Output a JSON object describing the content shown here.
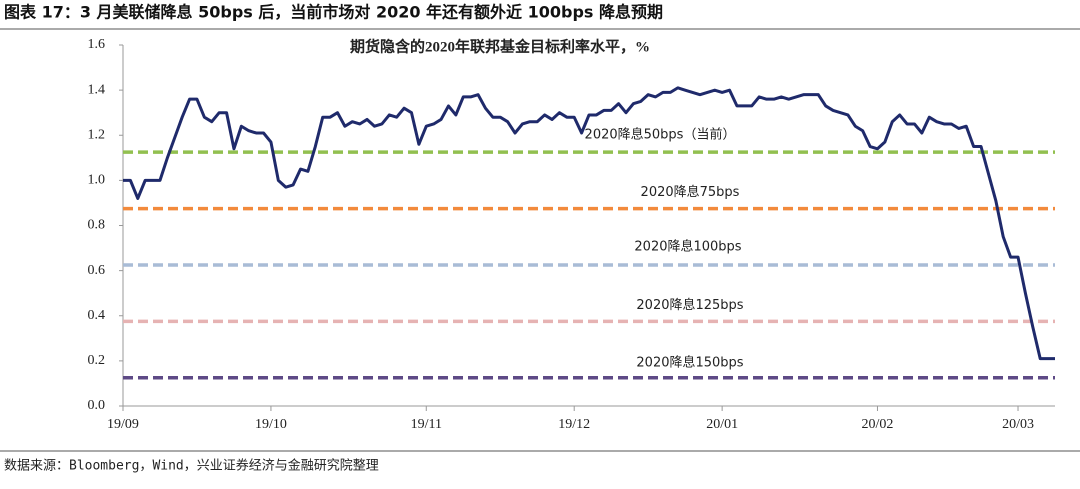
{
  "title": "图表 17：3 月美联储降息 50bps 后，当前市场对 2020 年还有额外近 100bps 降息预期",
  "source": "数据来源：Bloomberg，Wind，兴业证券经济与金融研究院整理",
  "chart_data": {
    "type": "line",
    "title": "期货隐含的2020年联邦基金目标利率水平，%",
    "categories": [
      "19/09",
      null,
      null,
      null,
      null,
      null,
      null,
      null,
      null,
      null,
      null,
      null,
      null,
      null,
      null,
      null,
      null,
      null,
      null,
      null,
      "19/10",
      null,
      null,
      null,
      null,
      null,
      null,
      null,
      null,
      null,
      null,
      null,
      null,
      null,
      null,
      null,
      null,
      null,
      null,
      null,
      null,
      "19/11",
      null,
      null,
      null,
      null,
      null,
      null,
      null,
      null,
      null,
      null,
      null,
      null,
      null,
      null,
      null,
      null,
      null,
      null,
      null,
      "19/12",
      null,
      null,
      null,
      null,
      null,
      null,
      null,
      null,
      null,
      null,
      null,
      null,
      null,
      null,
      null,
      null,
      null,
      null,
      null,
      "20/01",
      null,
      null,
      null,
      null,
      null,
      null,
      null,
      null,
      null,
      null,
      null,
      null,
      null,
      null,
      null,
      null,
      null,
      null,
      null,
      null,
      "20/02",
      null,
      null,
      null,
      null,
      null,
      null,
      null,
      null,
      null,
      null,
      null,
      null,
      null,
      null,
      null,
      null,
      null,
      null,
      "20/03",
      null,
      null,
      null,
      null,
      null
    ],
    "series": [
      {
        "color": "#1f2a6b",
        "values": [
          1.0,
          1.0,
          0.92,
          1.0,
          1.0,
          1.0,
          1.1,
          1.19,
          1.28,
          1.36,
          1.36,
          1.28,
          1.26,
          1.3,
          1.3,
          1.14,
          1.24,
          1.22,
          1.21,
          1.21,
          1.17,
          1.0,
          0.97,
          0.98,
          1.05,
          1.04,
          1.15,
          1.28,
          1.28,
          1.3,
          1.24,
          1.26,
          1.25,
          1.27,
          1.24,
          1.25,
          1.29,
          1.28,
          1.32,
          1.3,
          1.16,
          1.24,
          1.25,
          1.27,
          1.33,
          1.29,
          1.37,
          1.37,
          1.38,
          1.32,
          1.28,
          1.28,
          1.26,
          1.21,
          1.25,
          1.26,
          1.26,
          1.29,
          1.27,
          1.3,
          1.28,
          1.28,
          1.21,
          1.29,
          1.29,
          1.31,
          1.31,
          1.34,
          1.3,
          1.34,
          1.35,
          1.38,
          1.37,
          1.39,
          1.39,
          1.41,
          1.4,
          1.39,
          1.38,
          1.39,
          1.4,
          1.39,
          1.4,
          1.33,
          1.33,
          1.33,
          1.37,
          1.36,
          1.36,
          1.37,
          1.36,
          1.37,
          1.38,
          1.38,
          1.38,
          1.33,
          1.31,
          1.3,
          1.29,
          1.24,
          1.22,
          1.15,
          1.14,
          1.17,
          1.26,
          1.29,
          1.25,
          1.25,
          1.21,
          1.28,
          1.26,
          1.25,
          1.25,
          1.23,
          1.24,
          1.15,
          1.15,
          1.03,
          0.91,
          0.75,
          0.66,
          0.66,
          0.5,
          0.35,
          0.21,
          0.21,
          0.21
        ]
      }
    ],
    "reference_lines": [
      {
        "value": 1.125,
        "label": "2020降息50bps（当前）",
        "color": "#92c050"
      },
      {
        "value": 0.875,
        "label": "2020降息75bps",
        "color": "#f28a3c"
      },
      {
        "value": 0.625,
        "label": "2020降息100bps",
        "color": "#a9bcd6"
      },
      {
        "value": 0.375,
        "label": "2020降息125bps",
        "color": "#e6b3b3"
      },
      {
        "value": 0.125,
        "label": "2020降息150bps",
        "color": "#5e4a86"
      }
    ],
    "ylim": [
      0,
      1.6
    ],
    "yticks": [
      {
        "value": 0,
        "label": "0.0"
      },
      0.2,
      0.4,
      0.6,
      0.8,
      {
        "value": 1,
        "label": "1.0"
      },
      1.2,
      1.4,
      1.6
    ]
  }
}
